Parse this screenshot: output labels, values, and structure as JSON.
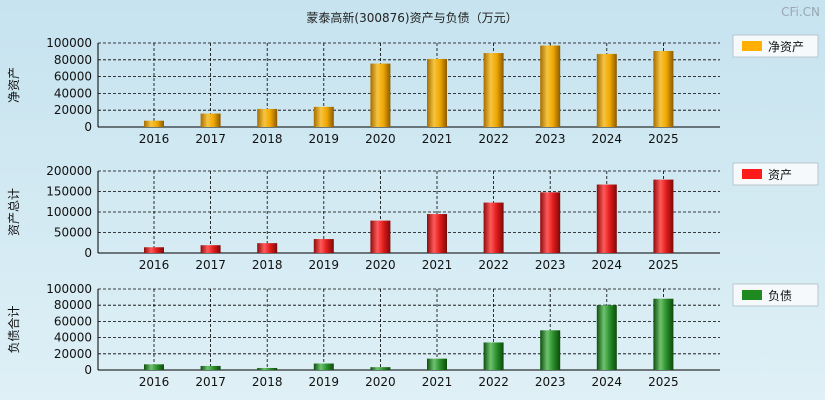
{
  "title": "蒙泰高新(300876)资产与负债（万元）",
  "watermark": "CFi.CN",
  "chart_data": [
    {
      "type": "bar",
      "ylabel": "净资产",
      "legend": "净资产",
      "ylim": [
        0,
        100000
      ],
      "yticks": [
        0,
        20000,
        40000,
        60000,
        80000,
        100000
      ],
      "color": "#f0a800",
      "categories": [
        "2016",
        "2017",
        "2018",
        "2019",
        "2020",
        "2021",
        "2022",
        "2023",
        "2024",
        "2025"
      ],
      "values": [
        7500,
        16000,
        21500,
        24000,
        75500,
        81000,
        88000,
        97000,
        87000,
        90500
      ]
    },
    {
      "type": "bar",
      "ylabel": "资产总计",
      "legend": "资产",
      "ylim": [
        0,
        200000
      ],
      "yticks": [
        0,
        50000,
        100000,
        150000,
        200000
      ],
      "color": "#ff0000",
      "categories": [
        "2016",
        "2017",
        "2018",
        "2019",
        "2020",
        "2021",
        "2022",
        "2023",
        "2024",
        "2025"
      ],
      "values": [
        14000,
        19000,
        24000,
        34000,
        79000,
        95000,
        123000,
        148000,
        167000,
        179000
      ]
    },
    {
      "type": "bar",
      "ylabel": "负债合计",
      "legend": "负债",
      "ylim": [
        0,
        100000
      ],
      "yticks": [
        0,
        20000,
        40000,
        60000,
        80000,
        100000
      ],
      "color": "#1a8a1a",
      "categories": [
        "2016",
        "2017",
        "2018",
        "2019",
        "2020",
        "2021",
        "2022",
        "2023",
        "2024",
        "2025"
      ],
      "values": [
        7000,
        5000,
        2500,
        8000,
        3500,
        14000,
        34000,
        49000,
        80000,
        88000
      ]
    }
  ]
}
